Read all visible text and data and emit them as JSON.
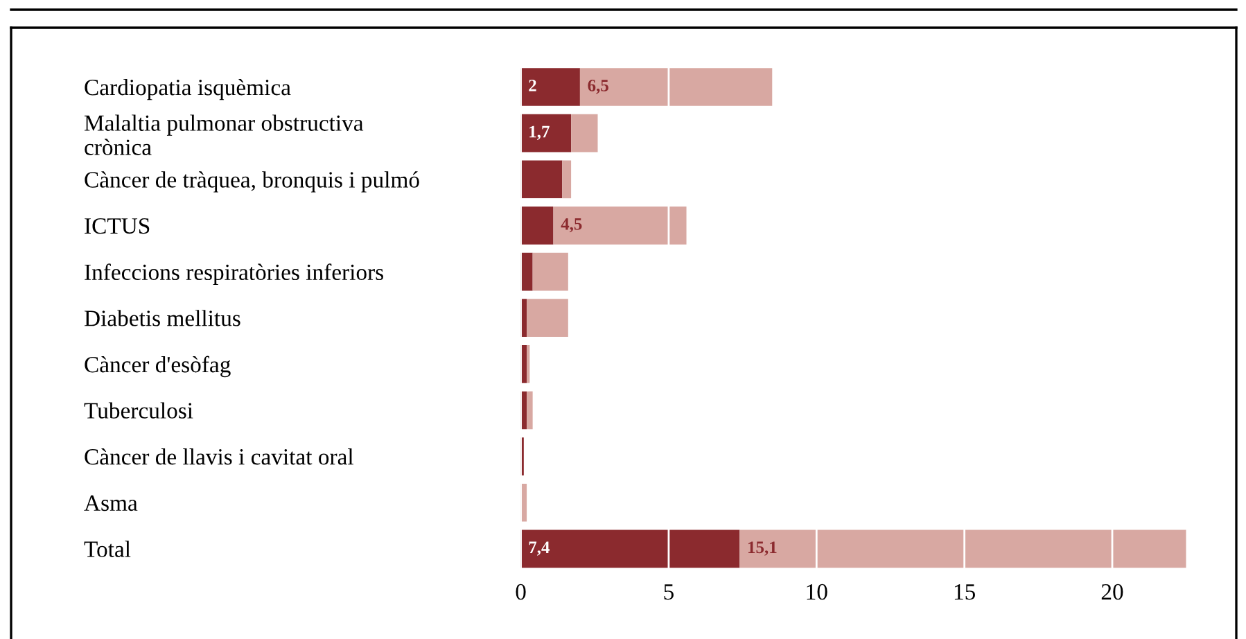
{
  "chart_data": {
    "type": "bar",
    "orientation": "horizontal",
    "stacked": true,
    "categories": [
      "Cardiopatia isquèmica",
      "Malaltia pulmonar obstructiva\ncrònica",
      "Càncer de tràquea, bronquis i pulmó",
      "ICTUS",
      "Infeccions respiratòries inferiors",
      "Diabetis mellitus",
      "Càncer d'esòfag",
      "Tuberculosi",
      "Càncer de llavis i cavitat oral",
      "Asma",
      "Total"
    ],
    "series": [
      {
        "color": "#8b2a2e",
        "values": [
          2,
          1.7,
          1.4,
          1.1,
          0.4,
          0.2,
          0.2,
          0.2,
          0.1,
          0,
          7.4
        ],
        "value_labels": [
          "2",
          "1,7",
          null,
          null,
          null,
          null,
          null,
          null,
          null,
          null,
          "7,4"
        ]
      },
      {
        "color": "#d8a8a2",
        "values": [
          6.5,
          0.9,
          0.3,
          4.5,
          1.2,
          1.4,
          0.1,
          0.2,
          0,
          0.2,
          15.1
        ],
        "value_labels": [
          "6,5",
          null,
          null,
          "4,5",
          null,
          null,
          null,
          null,
          null,
          null,
          "15,1"
        ]
      }
    ],
    "xlim": [
      0,
      22.5
    ],
    "xticks": [
      0,
      5,
      10,
      15,
      20
    ],
    "grid": "x"
  }
}
